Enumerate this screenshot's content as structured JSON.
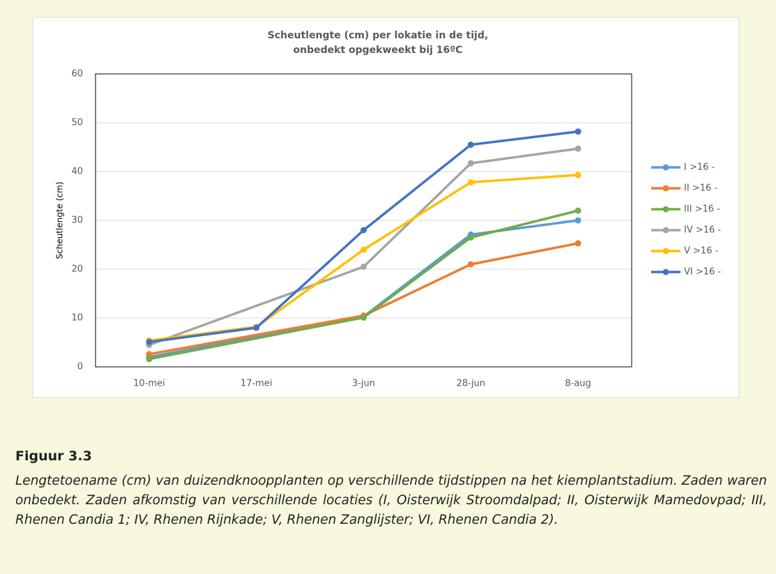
{
  "chart_data": {
    "type": "line",
    "title": [
      "Scheutlengte (cm) per lokatie in de tijd,",
      "onbedekt opgekweekt bij 16ºC"
    ],
    "y_label": "Scheutlengte (cm)",
    "categories": [
      "10-mei",
      "17-mei",
      "3-jun",
      "28-jun",
      "8-aug"
    ],
    "series": [
      {
        "name": "I >16 -",
        "color": "#5b9bd5",
        "values": [
          2.0,
          null,
          10.3,
          27.1,
          30.0
        ]
      },
      {
        "name": "II >16 -",
        "color": "#ed7d31",
        "values": [
          2.6,
          null,
          10.5,
          21.0,
          25.3
        ]
      },
      {
        "name": "III >16 -",
        "color": "#70ad47",
        "values": [
          1.6,
          null,
          10.1,
          26.5,
          32.0
        ]
      },
      {
        "name": "IV >16 -",
        "color": "#a5a5a5",
        "values": [
          4.5,
          null,
          20.5,
          41.7,
          44.7
        ]
      },
      {
        "name": "V >16 -",
        "color": "#ffc000",
        "values": [
          5.4,
          8.2,
          24.0,
          37.8,
          39.3
        ]
      },
      {
        "name": "VI >16 -",
        "color": "#4472c4",
        "values": [
          5.1,
          8.0,
          28.0,
          45.5,
          48.2
        ]
      }
    ],
    "span_gaps": true,
    "ylim": [
      0,
      60
    ],
    "yticks": [
      0,
      10,
      20,
      30,
      40,
      50,
      60
    ],
    "grid": true,
    "legend": "right"
  },
  "figure": {
    "label": "Figuur 3.3",
    "caption": "Lengtetoename (cm) van duizendknoopplanten op verschillende tijdstippen na het kiemplantstadium. Zaden waren onbedekt. Zaden afkomstig van verschillende locaties (I, Oisterwijk Stroomdalpad; II, Oisterwijk Mamedovpad; III, Rhenen Candia 1; IV, Rhenen Rijnkade; V, Rhenen Zanglijster; VI, Rhenen Candia 2)."
  }
}
